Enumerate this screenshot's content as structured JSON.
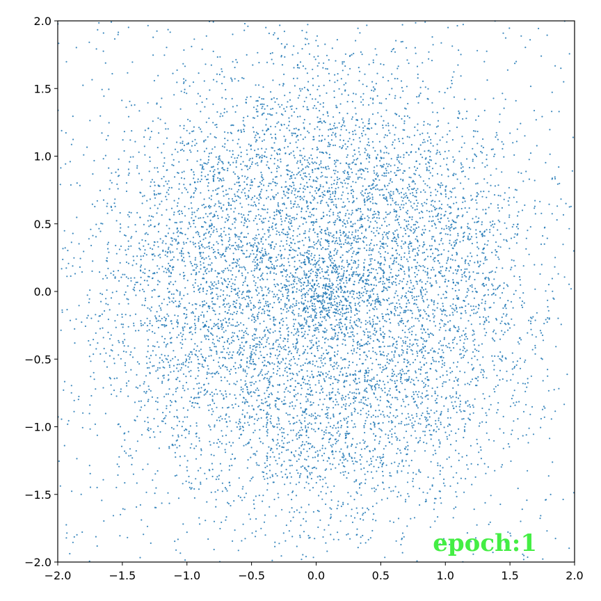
{
  "chart_data": {
    "type": "scatter",
    "title": "",
    "xlabel": "",
    "ylabel": "",
    "xlim": [
      -2.0,
      2.0
    ],
    "ylim": [
      -2.0,
      2.0
    ],
    "grid": false,
    "legend": "none",
    "xticks": [
      "−2.0",
      "−1.5",
      "−1.0",
      "−0.5",
      "0.0",
      "0.5",
      "1.0",
      "1.5",
      "2.0"
    ],
    "yticks": [
      "−2.0",
      "−1.5",
      "−1.0",
      "−0.5",
      "0.0",
      "0.5",
      "1.0",
      "1.5",
      "2.0"
    ],
    "xtick_values": [
      -2.0,
      -1.5,
      -1.0,
      -0.5,
      0.0,
      0.5,
      1.0,
      1.5,
      2.0
    ],
    "ytick_values": [
      -2.0,
      -1.5,
      -1.0,
      -0.5,
      0.0,
      0.5,
      1.0,
      1.5,
      2.0
    ],
    "point_color": "#1f77b4",
    "distribution": {
      "shape": "ring",
      "center": [
        0.0,
        0.0
      ],
      "radius": 1.0,
      "spread": 0.5
    },
    "annotation": {
      "text": "epoch:1",
      "color": "#44ee44",
      "placement": "bottom-right"
    }
  }
}
